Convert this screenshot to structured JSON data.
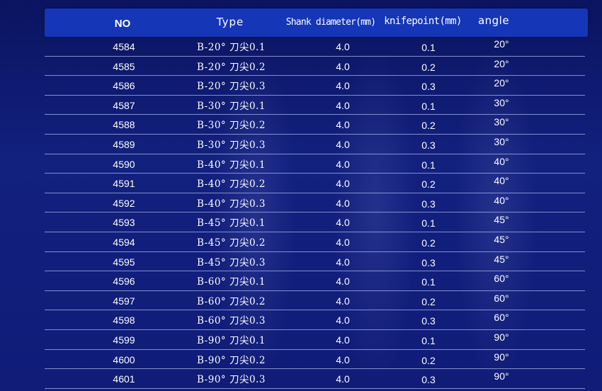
{
  "table": {
    "headers": {
      "no": "NO",
      "type": "Type",
      "shank": "Shank diameter(mm)",
      "knife": "knifepoint(mm)",
      "angle": "angle"
    },
    "rows": [
      {
        "no": "4584",
        "type": "B-20°  刀尖0.1",
        "shank": "4.0",
        "knife": "0.1",
        "angle": "20°"
      },
      {
        "no": "4585",
        "type": "B-20°  刀尖0.2",
        "shank": "4.0",
        "knife": "0.2",
        "angle": "20°"
      },
      {
        "no": "4586",
        "type": "B-20°  刀尖0.3",
        "shank": "4.0",
        "knife": "0.3",
        "angle": "20°"
      },
      {
        "no": "4587",
        "type": "B-30°  刀尖0.1",
        "shank": "4.0",
        "knife": "0.1",
        "angle": "30°"
      },
      {
        "no": "4588",
        "type": "B-30°  刀尖0.2",
        "shank": "4.0",
        "knife": "0.2",
        "angle": "30°"
      },
      {
        "no": "4589",
        "type": "B-30°  刀尖0.3",
        "shank": "4.0",
        "knife": "0.3",
        "angle": "30°"
      },
      {
        "no": "4590",
        "type": "B-40°  刀尖0.1",
        "shank": "4.0",
        "knife": "0.1",
        "angle": "40°"
      },
      {
        "no": "4591",
        "type": "B-40°  刀尖0.2",
        "shank": "4.0",
        "knife": "0.2",
        "angle": "40°"
      },
      {
        "no": "4592",
        "type": "B-40°  刀尖0.3",
        "shank": "4.0",
        "knife": "0.3",
        "angle": "40°"
      },
      {
        "no": "4593",
        "type": "B-45°  刀尖0.1",
        "shank": "4.0",
        "knife": "0.1",
        "angle": "45°"
      },
      {
        "no": "4594",
        "type": "B-45°  刀尖0.2",
        "shank": "4.0",
        "knife": "0.2",
        "angle": "45°"
      },
      {
        "no": "4595",
        "type": "B-45°  刀尖0.3",
        "shank": "4.0",
        "knife": "0.3",
        "angle": "45°"
      },
      {
        "no": "4596",
        "type": "B-60°  刀尖0.1",
        "shank": "4.0",
        "knife": "0.1",
        "angle": "60°"
      },
      {
        "no": "4597",
        "type": "B-60°  刀尖0.2",
        "shank": "4.0",
        "knife": "0.2",
        "angle": "60°"
      },
      {
        "no": "4598",
        "type": "B-60°  刀尖0.3",
        "shank": "4.0",
        "knife": "0.3",
        "angle": "60°"
      },
      {
        "no": "4599",
        "type": "B-90°  刀尖0.1",
        "shank": "4.0",
        "knife": "0.1",
        "angle": "90°"
      },
      {
        "no": "4600",
        "type": "B-90°  刀尖0.2",
        "shank": "4.0",
        "knife": "0.2",
        "angle": "90°"
      },
      {
        "no": "4601",
        "type": "B-90°  刀尖0.3",
        "shank": "4.0",
        "knife": "0.3",
        "angle": "90°"
      }
    ]
  },
  "colors": {
    "background": "#101c78",
    "header_band": "#1636b8",
    "text": "#ffffff",
    "divider": "#aab4eb"
  }
}
